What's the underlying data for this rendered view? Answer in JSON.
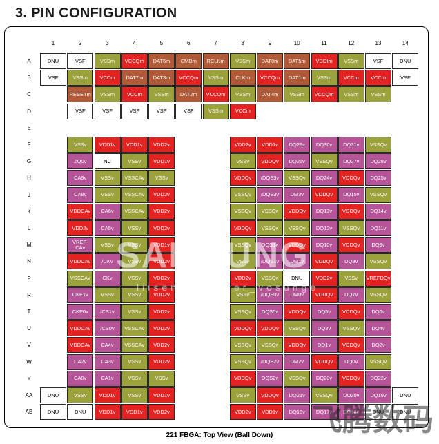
{
  "title": "3. PIN CONFIGURATION",
  "caption": "221 FBGA: Top View (Ball Down)",
  "watermark": {
    "main": "SAMSUNG",
    "sub": "liisen_wangder_vosunge",
    "corner": "飞腾数码"
  },
  "colors": {
    "vss": "#9ba23c",
    "vdd": "#e32222",
    "signal": "#b05a38",
    "dq": "#b55598",
    "unused": "#ffffff"
  },
  "columns": [
    "1",
    "2",
    "3",
    "4",
    "5",
    "6",
    "7",
    "8",
    "9",
    "10",
    "11",
    "12",
    "13",
    "14"
  ],
  "rows": [
    {
      "label": "A",
      "balls": [
        [
          1,
          "DNU",
          "dnu"
        ],
        [
          2,
          "VSF",
          "vsf"
        ],
        [
          3,
          "VSSm",
          "vss"
        ],
        [
          4,
          "VCCQm",
          "vdd"
        ],
        [
          5,
          "DAT6m",
          "sig"
        ],
        [
          6,
          "CMDm",
          "sig"
        ],
        [
          7,
          "RCLKm",
          "sig"
        ],
        [
          8,
          "VSSm",
          "vss"
        ],
        [
          9,
          "DAT0m",
          "sig"
        ],
        [
          10,
          "DAT5m",
          "sig"
        ],
        [
          11,
          "VDDIm",
          "vdd"
        ],
        [
          12,
          "VSSm",
          "vss"
        ],
        [
          13,
          "VSF",
          "vsf"
        ],
        [
          14,
          "DNU",
          "dnu"
        ]
      ]
    },
    {
      "label": "B",
      "balls": [
        [
          1,
          "VSF",
          "vsf"
        ],
        [
          2,
          "VSSm",
          "vss"
        ],
        [
          3,
          "VCCm",
          "vdd"
        ],
        [
          4,
          "DAT7m",
          "sig"
        ],
        [
          5,
          "DAT3m",
          "sig"
        ],
        [
          6,
          "VCCQm",
          "vdd"
        ],
        [
          7,
          "VSSm",
          "vss"
        ],
        [
          8,
          "CLKm",
          "sig"
        ],
        [
          9,
          "VCCQm",
          "vdd"
        ],
        [
          10,
          "DAT1m",
          "sig"
        ],
        [
          11,
          "VSSm",
          "vss"
        ],
        [
          12,
          "VCCm",
          "vdd"
        ],
        [
          13,
          "VCCm",
          "vdd"
        ],
        [
          14,
          "VSF",
          "vsf"
        ]
      ]
    },
    {
      "label": "C",
      "balls": [
        [
          2,
          "RESETm",
          "sig"
        ],
        [
          3,
          "VSSm",
          "vss"
        ],
        [
          4,
          "VCCm",
          "vdd"
        ],
        [
          5,
          "VSSm",
          "vss"
        ],
        [
          6,
          "DAT2m",
          "sig"
        ],
        [
          7,
          "VCCQm",
          "vdd"
        ],
        [
          8,
          "VSSm",
          "vss"
        ],
        [
          9,
          "DAT4m",
          "sig"
        ],
        [
          10,
          "VSSm",
          "vss"
        ],
        [
          11,
          "VCCQm",
          "vdd"
        ],
        [
          12,
          "VSSm",
          "vss"
        ],
        [
          13,
          "VSSm",
          "vss"
        ]
      ]
    },
    {
      "label": "D",
      "balls": [
        [
          2,
          "VSF",
          "vsf"
        ],
        [
          3,
          "VSF",
          "vsf"
        ],
        [
          4,
          "VSF",
          "vsf"
        ],
        [
          5,
          "VSF",
          "vsf"
        ],
        [
          6,
          "VSF",
          "vsf"
        ],
        [
          7,
          "VSSm",
          "vss"
        ],
        [
          8,
          "VCCm",
          "vdd"
        ]
      ]
    },
    {
      "label": "E",
      "balls": []
    },
    {
      "label": "F",
      "balls": [
        [
          2,
          "VSSv",
          "vss"
        ],
        [
          3,
          "VDD1v",
          "vdd"
        ],
        [
          4,
          "VDD1v",
          "vdd"
        ],
        [
          5,
          "VDD2v",
          "vdd"
        ],
        [
          8,
          "VDD2v",
          "vdd"
        ],
        [
          9,
          "VDD1v",
          "vdd"
        ],
        [
          10,
          "DQ29v",
          "dq"
        ],
        [
          11,
          "DQ30v",
          "dq"
        ],
        [
          12,
          "DQ31v",
          "dq"
        ],
        [
          13,
          "VSSQv",
          "vss"
        ]
      ]
    },
    {
      "label": "G",
      "balls": [
        [
          2,
          "ZQ0v",
          "dq"
        ],
        [
          3,
          "NC",
          "nc"
        ],
        [
          4,
          "VSSv",
          "vss"
        ],
        [
          5,
          "VDD1v",
          "vdd"
        ],
        [
          8,
          "VSSv",
          "vss"
        ],
        [
          9,
          "VDDQv",
          "vdd"
        ],
        [
          10,
          "DQ26v",
          "dq"
        ],
        [
          11,
          "VSSQv",
          "vss"
        ],
        [
          12,
          "DQ27v",
          "dq"
        ],
        [
          13,
          "DQ28v",
          "dq"
        ]
      ]
    },
    {
      "label": "H",
      "balls": [
        [
          2,
          "CA9v",
          "dq"
        ],
        [
          3,
          "VSSv",
          "vss"
        ],
        [
          4,
          "VSSCAv",
          "vss"
        ],
        [
          5,
          "VSSv",
          "vss"
        ],
        [
          8,
          "VDDQv",
          "vdd"
        ],
        [
          9,
          "/DQS3v",
          "dq"
        ],
        [
          10,
          "VSSQv",
          "vss"
        ],
        [
          11,
          "DQ24v",
          "dq"
        ],
        [
          12,
          "VDDQv",
          "vdd"
        ],
        [
          13,
          "DQ25v",
          "dq"
        ]
      ]
    },
    {
      "label": "J",
      "balls": [
        [
          2,
          "CA8v",
          "dq"
        ],
        [
          3,
          "VSSv",
          "vss"
        ],
        [
          4,
          "VSSCAv",
          "vss"
        ],
        [
          5,
          "VDD2v",
          "vdd"
        ],
        [
          8,
          "VSSQv",
          "vss"
        ],
        [
          9,
          "/DQS3v",
          "dq"
        ],
        [
          10,
          "DM3v",
          "dq"
        ],
        [
          11,
          "VDDQv",
          "vdd"
        ],
        [
          12,
          "DQ15v",
          "dq"
        ],
        [
          13,
          "VSSQv",
          "vss"
        ]
      ]
    },
    {
      "label": "K",
      "balls": [
        [
          2,
          "VDDCAv",
          "vdd"
        ],
        [
          3,
          "CA6v",
          "dq"
        ],
        [
          4,
          "VSSCAv",
          "vss"
        ],
        [
          5,
          "VDD2v",
          "vdd"
        ],
        [
          8,
          "VSSQv",
          "vss"
        ],
        [
          9,
          "VSSQv",
          "vss"
        ],
        [
          10,
          "VDDQv",
          "vdd"
        ],
        [
          11,
          "DQ13v",
          "dq"
        ],
        [
          12,
          "VDDQv",
          "vdd"
        ],
        [
          13,
          "DQ14v",
          "dq"
        ]
      ]
    },
    {
      "label": "L",
      "balls": [
        [
          2,
          "VDD2v",
          "vdd"
        ],
        [
          3,
          "CA5v",
          "dq"
        ],
        [
          4,
          "VSSv",
          "vss"
        ],
        [
          5,
          "VDD2v",
          "vdd"
        ],
        [
          8,
          "VDDQv",
          "vdd"
        ],
        [
          9,
          "VSSQv",
          "vss"
        ],
        [
          10,
          "VSSQv",
          "vss"
        ],
        [
          11,
          "DQ12v",
          "dq"
        ],
        [
          12,
          "VSSQv",
          "vss"
        ],
        [
          13,
          "DQ11v",
          "dq"
        ]
      ]
    },
    {
      "label": "M",
      "balls": [
        [
          2,
          "VREF-CAv",
          "dq"
        ],
        [
          3,
          "VSSv",
          "vss"
        ],
        [
          4,
          "VSSv",
          "vss"
        ],
        [
          5,
          "VDD1v",
          "vdd"
        ],
        [
          8,
          "VSSQv",
          "vss"
        ],
        [
          9,
          "DQS1v",
          "dq"
        ],
        [
          10,
          "VDDQv",
          "vdd"
        ],
        [
          11,
          "DQ10v",
          "dq"
        ],
        [
          12,
          "VDDQv",
          "vdd"
        ],
        [
          13,
          "DQ9v",
          "dq"
        ]
      ]
    },
    {
      "label": "N",
      "balls": [
        [
          2,
          "VDDCAv",
          "vdd"
        ],
        [
          3,
          "/CKv",
          "dq"
        ],
        [
          4,
          "VSSv",
          "vss"
        ],
        [
          5,
          "VDD2v",
          "vdd"
        ],
        [
          8,
          "VSSv",
          "vss"
        ],
        [
          9,
          "/DQS1v",
          "dq"
        ],
        [
          10,
          "DM1v",
          "dq"
        ],
        [
          11,
          "VDDQv",
          "vdd"
        ],
        [
          12,
          "DQ8v",
          "dq"
        ],
        [
          13,
          "VSSQv",
          "vss"
        ]
      ]
    },
    {
      "label": "P",
      "balls": [
        [
          2,
          "VSSCAv",
          "vss"
        ],
        [
          3,
          "CKv",
          "dq"
        ],
        [
          4,
          "VSSv",
          "vss"
        ],
        [
          5,
          "VDD2v",
          "vdd"
        ],
        [
          8,
          "VDD2v",
          "vdd"
        ],
        [
          9,
          "VSSQv",
          "vss"
        ],
        [
          10,
          "DNU",
          "dnu"
        ],
        [
          11,
          "VDD2v",
          "vdd"
        ],
        [
          12,
          "VSSv",
          "vss"
        ],
        [
          13,
          "VREFDQv",
          "vdd"
        ]
      ]
    },
    {
      "label": "R",
      "balls": [
        [
          2,
          "CKE1v",
          "dq"
        ],
        [
          3,
          "VSSv",
          "vss"
        ],
        [
          4,
          "VSSv",
          "vss"
        ],
        [
          5,
          "VDD2v",
          "vdd"
        ],
        [
          8,
          "VSSv",
          "vss"
        ],
        [
          9,
          "/DQS0v",
          "dq"
        ],
        [
          10,
          "DM0v",
          "dq"
        ],
        [
          11,
          "VDDQv",
          "vdd"
        ],
        [
          12,
          "DQ7v",
          "dq"
        ],
        [
          13,
          "VSSQv",
          "vss"
        ]
      ]
    },
    {
      "label": "T",
      "balls": [
        [
          2,
          "CKE0v",
          "dq"
        ],
        [
          3,
          "/CS1v",
          "dq"
        ],
        [
          4,
          "VSSv",
          "vss"
        ],
        [
          5,
          "VDD2v",
          "vdd"
        ],
        [
          8,
          "VSSQv",
          "vss"
        ],
        [
          9,
          "DQS0v",
          "dq"
        ],
        [
          10,
          "VDDQv",
          "vdd"
        ],
        [
          11,
          "DQ5v",
          "dq"
        ],
        [
          12,
          "VDDQv",
          "vdd"
        ],
        [
          13,
          "DQ6v",
          "dq"
        ]
      ]
    },
    {
      "label": "U",
      "balls": [
        [
          2,
          "VDDCAv",
          "vdd"
        ],
        [
          3,
          "/CS0v",
          "dq"
        ],
        [
          4,
          "VSSCAv",
          "vss"
        ],
        [
          5,
          "VDD2v",
          "vdd"
        ],
        [
          8,
          "VDDQv",
          "vdd"
        ],
        [
          9,
          "VDDQv",
          "vdd"
        ],
        [
          10,
          "VSSQv",
          "vss"
        ],
        [
          11,
          "DQ3v",
          "dq"
        ],
        [
          12,
          "VSSQv",
          "vss"
        ],
        [
          13,
          "DQ4v",
          "dq"
        ]
      ]
    },
    {
      "label": "V",
      "balls": [
        [
          2,
          "VDDCAv",
          "vdd"
        ],
        [
          3,
          "CA4v",
          "dq"
        ],
        [
          4,
          "VSSCAv",
          "vss"
        ],
        [
          5,
          "VDD2v",
          "vdd"
        ],
        [
          8,
          "VSSQv",
          "vss"
        ],
        [
          9,
          "VSSQv",
          "vss"
        ],
        [
          10,
          "VDDQv",
          "vdd"
        ],
        [
          11,
          "DQ1v",
          "dq"
        ],
        [
          12,
          "VDDQv",
          "vdd"
        ],
        [
          13,
          "DQ2v",
          "dq"
        ]
      ]
    },
    {
      "label": "W",
      "balls": [
        [
          2,
          "CA2v",
          "dq"
        ],
        [
          3,
          "CA3v",
          "dq"
        ],
        [
          4,
          "VSSv",
          "vss"
        ],
        [
          5,
          "VDD2v",
          "vdd"
        ],
        [
          8,
          "VSSQv",
          "vss"
        ],
        [
          9,
          "/DQS2v",
          "dq"
        ],
        [
          10,
          "DM2v",
          "dq"
        ],
        [
          11,
          "VDDQv",
          "vdd"
        ],
        [
          12,
          "DQ0v",
          "dq"
        ],
        [
          13,
          "VSSQv",
          "vss"
        ]
      ]
    },
    {
      "label": "Y",
      "balls": [
        [
          2,
          "CA0v",
          "dq"
        ],
        [
          3,
          "CA1v",
          "dq"
        ],
        [
          4,
          "VSSv",
          "vss"
        ],
        [
          5,
          "VSSv",
          "vss"
        ],
        [
          8,
          "VDDQv",
          "vdd"
        ],
        [
          9,
          "DQS2v",
          "dq"
        ],
        [
          10,
          "VSSQv",
          "vss"
        ],
        [
          11,
          "DQ23v",
          "dq"
        ],
        [
          12,
          "VDDQv",
          "vdd"
        ],
        [
          13,
          "DQ22v",
          "dq"
        ]
      ]
    },
    {
      "label": "AA",
      "balls": [
        [
          1,
          "DNU",
          "dnu"
        ],
        [
          2,
          "VSSv",
          "vss"
        ],
        [
          3,
          "VDD1v",
          "vdd"
        ],
        [
          4,
          "VSSv",
          "vss"
        ],
        [
          5,
          "VDD1v",
          "vdd"
        ],
        [
          8,
          "VSSv",
          "vss"
        ],
        [
          9,
          "VDDQv",
          "vdd"
        ],
        [
          10,
          "DQ21v",
          "dq"
        ],
        [
          11,
          "VSSQv",
          "vss"
        ],
        [
          12,
          "DQ20v",
          "dq"
        ],
        [
          13,
          "DQ19v",
          "dq"
        ],
        [
          14,
          "DNU",
          "dnu"
        ]
      ]
    },
    {
      "label": "AB",
      "balls": [
        [
          1,
          "DNU",
          "dnu"
        ],
        [
          2,
          "DNU",
          "dnu"
        ],
        [
          3,
          "VDD1v",
          "vdd"
        ],
        [
          4,
          "VDD1v",
          "vdd"
        ],
        [
          5,
          "VDD2v",
          "vdd"
        ],
        [
          8,
          "VDD2v",
          "vdd"
        ],
        [
          9,
          "VDD1v",
          "vdd"
        ],
        [
          10,
          "DQ18v",
          "dq"
        ],
        [
          11,
          "DQ17v",
          "dq"
        ],
        [
          12,
          "DQ16v",
          "dq"
        ],
        [
          13,
          "DNU",
          "dnu"
        ],
        [
          14,
          "DNU",
          "dnu"
        ]
      ]
    }
  ]
}
